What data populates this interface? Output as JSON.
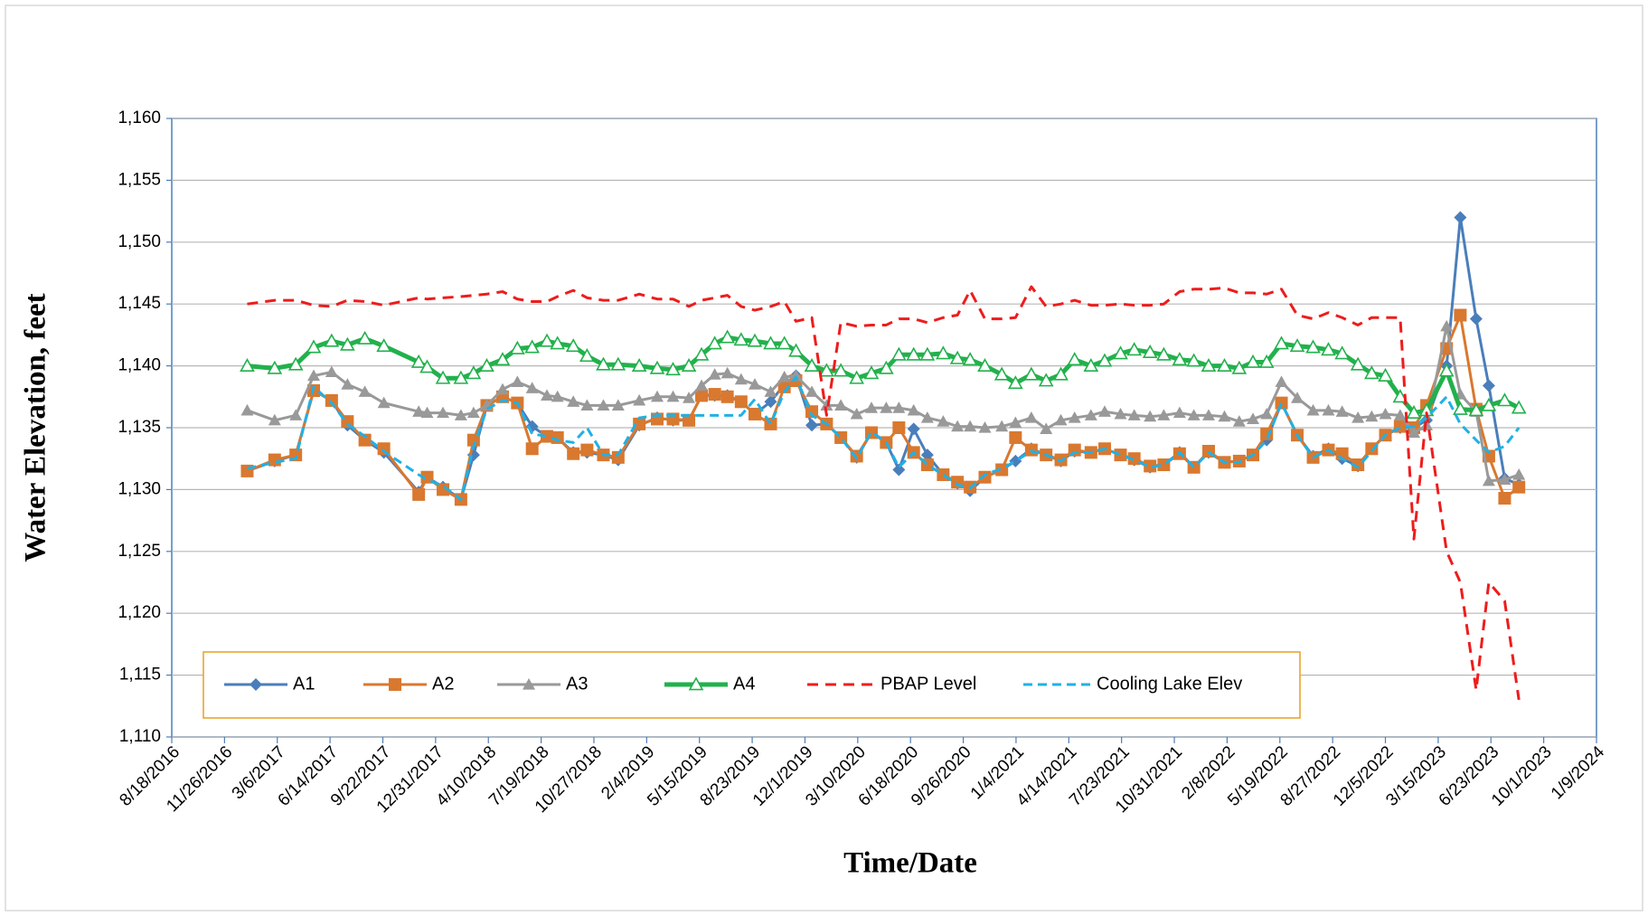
{
  "chart_data": {
    "type": "line",
    "x_title": "Time/Date",
    "y_title": "Water Elevation, feet",
    "xlim": [
      "8/18/2016",
      "1/9/2024"
    ],
    "xticks": [
      "8/18/2016",
      "11/26/2016",
      "3/6/2017",
      "6/14/2017",
      "9/22/2017",
      "12/31/2017",
      "4/10/2018",
      "7/19/2018",
      "10/27/2018",
      "2/4/2019",
      "5/15/2019",
      "8/23/2019",
      "12/1/2019",
      "3/10/2020",
      "6/18/2020",
      "9/26/2020",
      "1/4/2021",
      "4/14/2021",
      "7/23/2021",
      "10/31/2021",
      "2/8/2022",
      "5/19/2022",
      "8/27/2022",
      "12/5/2022",
      "3/15/2023",
      "6/23/2023",
      "10/1/2023",
      "1/9/2024"
    ],
    "ylim": [
      1110,
      1160
    ],
    "yticks": [
      {
        "value": 1110,
        "label": "1,110"
      },
      {
        "value": 1115,
        "label": "1,115"
      },
      {
        "value": 1120,
        "label": "1,120"
      },
      {
        "value": 1125,
        "label": "1,125"
      },
      {
        "value": 1130,
        "label": "1,130"
      },
      {
        "value": 1135,
        "label": "1,135"
      },
      {
        "value": 1140,
        "label": "1,140"
      },
      {
        "value": 1145,
        "label": "1,145"
      },
      {
        "value": 1150,
        "label": "1,150"
      },
      {
        "value": 1155,
        "label": "1,155"
      },
      {
        "value": 1160,
        "label": "1,160"
      }
    ],
    "grid": true,
    "legend": "bottom",
    "x": [
      "1/8/2017",
      "3/1/2017",
      "4/10/2017",
      "5/14/2017",
      "6/17/2017",
      "7/17/2017",
      "8/19/2017",
      "9/24/2017",
      "11/29/2017",
      "12/15/2017",
      "1/14/2018",
      "2/17/2018",
      "3/13/2018",
      "4/7/2018",
      "5/7/2018",
      "6/4/2018",
      "7/2/2018",
      "7/30/2018",
      "8/19/2018",
      "9/18/2018",
      "10/14/2018",
      "11/14/2018",
      "12/12/2018",
      "1/21/2019",
      "2/24/2019",
      "3/26/2019",
      "4/25/2019",
      "5/19/2019",
      "6/13/2019",
      "7/7/2019",
      "8/2/2019",
      "8/28/2019",
      "9/27/2019",
      "10/23/2019",
      "11/14/2019",
      "12/14/2019",
      "1/11/2020",
      "2/7/2020",
      "3/8/2020",
      "4/5/2020",
      "5/3/2020",
      "5/27/2020",
      "6/24/2020",
      "7/20/2020",
      "8/19/2020",
      "9/15/2020",
      "10/9/2020",
      "11/6/2020",
      "12/8/2020",
      "1/3/2021",
      "2/2/2021",
      "3/2/2021",
      "3/30/2021",
      "4/25/2021",
      "5/26/2021",
      "6/21/2021",
      "7/21/2021",
      "8/16/2021",
      "9/15/2021",
      "10/11/2021",
      "11/10/2021",
      "12/7/2021",
      "1/4/2022",
      "2/3/2022",
      "3/3/2022",
      "3/29/2022",
      "4/24/2022",
      "5/22/2022",
      "6/21/2022",
      "7/21/2022",
      "8/19/2022",
      "9/14/2022",
      "10/14/2022",
      "11/9/2022",
      "12/5/2022",
      "1/2/2023",
      "1/28/2023",
      "2/21/2023",
      "3/31/2023",
      "4/26/2023",
      "5/26/2023",
      "6/19/2023",
      "7/19/2023",
      "8/15/2023"
    ],
    "series": [
      {
        "name": "A1",
        "color": "#4a7ebb",
        "marker": "diamond",
        "dash": "none",
        "width": 3,
        "values": [
          1131.5,
          1132.3,
          1132.8,
          1138,
          1137.2,
          1135.2,
          1134,
          1133,
          1129.8,
          1131,
          1130.2,
          1129.2,
          1132.8,
          1136.8,
          1137.5,
          1137,
          1135.1,
          1134.3,
          1134.2,
          1133,
          1133,
          1132.8,
          1132.4,
          1135.2,
          1135.8,
          1135.6,
          1135.6,
          1137.6,
          1137.6,
          1137.6,
          1137.1,
          1136.1,
          1137.1,
          1138.5,
          1139.2,
          1135.2,
          1135.3,
          1134.2,
          1132.6,
          1134.6,
          1133.8,
          1131.6,
          1134.9,
          1132.8,
          1131.2,
          1130.5,
          1129.9,
          1131,
          1131.6,
          1132.3,
          1133.3,
          1132.8,
          1132.3,
          1133.1,
          1133,
          1133.3,
          1132.8,
          1132.4,
          1131.8,
          1132,
          1133,
          1131.8,
          1133,
          1132.2,
          1132.3,
          1132.8,
          1134,
          1137,
          1134.4,
          1132.7,
          1133.3,
          1132.5,
          1131.9,
          1133.3,
          1134.4,
          1135,
          1135,
          1135.6,
          1140,
          1152,
          1143.8,
          1138.4,
          1130.9,
          1130.4
        ]
      },
      {
        "name": "A2",
        "color": "#d9782f",
        "marker": "square",
        "dash": "none",
        "width": 3,
        "values": [
          1131.5,
          1132.4,
          1132.8,
          1138,
          1137.2,
          1135.5,
          1134,
          1133.3,
          1129.6,
          1131,
          1130,
          1129.2,
          1134,
          1136.8,
          1137.5,
          1137,
          1133.3,
          1134.3,
          1134.2,
          1132.9,
          1133.2,
          1132.8,
          1132.6,
          1135.3,
          1135.7,
          1135.7,
          1135.6,
          1137.6,
          1137.7,
          1137.5,
          1137.1,
          1136.1,
          1135.3,
          1138.3,
          1138.8,
          1136.3,
          1135.3,
          1134.2,
          1132.7,
          1134.6,
          1133.8,
          1135,
          1133,
          1132,
          1131.2,
          1130.6,
          1130.2,
          1131,
          1131.6,
          1134.2,
          1133.2,
          1132.8,
          1132.4,
          1133.2,
          1133,
          1133.3,
          1132.8,
          1132.5,
          1131.9,
          1132,
          1132.9,
          1131.8,
          1133.1,
          1132.2,
          1132.3,
          1132.8,
          1134.5,
          1137,
          1134.4,
          1132.6,
          1133.2,
          1132.9,
          1132,
          1133.3,
          1134.4,
          1135.1,
          1135,
          1136.8,
          1141.4,
          1144.1,
          1136.5,
          1132.7,
          1129.3,
          1130.2
        ]
      },
      {
        "name": "A3",
        "color": "#999999",
        "marker": "triangle",
        "dash": "none",
        "width": 3,
        "values": [
          1136.4,
          1135.6,
          1136,
          1139.2,
          1139.5,
          1138.5,
          1137.9,
          1137,
          1136.3,
          1136.2,
          1136.2,
          1136,
          1136.2,
          1136.8,
          1138.1,
          1138.7,
          1138.2,
          1137.6,
          1137.5,
          1137.1,
          1136.8,
          1136.8,
          1136.8,
          1137.2,
          1137.5,
          1137.5,
          1137.4,
          1138.4,
          1139.3,
          1139.4,
          1138.9,
          1138.5,
          1137.9,
          1139.1,
          1139.2,
          1137.9,
          1136.8,
          1136.8,
          1136.1,
          1136.6,
          1136.6,
          1136.6,
          1136.4,
          1135.8,
          1135.5,
          1135.1,
          1135.1,
          1135,
          1135.1,
          1135.4,
          1135.8,
          1134.9,
          1135.6,
          1135.8,
          1136,
          1136.3,
          1136.1,
          1136,
          1135.9,
          1136,
          1136.2,
          1136,
          1136,
          1135.9,
          1135.5,
          1135.7,
          1136.1,
          1138.7,
          1137.4,
          1136.4,
          1136.4,
          1136.3,
          1135.8,
          1135.9,
          1136.1,
          1136,
          1134.6,
          1135.2,
          1143.2,
          1137.7,
          1136.3,
          1130.7,
          1130.8,
          1131.2
        ]
      },
      {
        "name": "A4",
        "color": "#22b14c",
        "marker": "open-triangle",
        "dash": "none",
        "width": 5,
        "values": [
          1140,
          1139.8,
          1140.1,
          1141.5,
          1142,
          1141.7,
          1142.2,
          1141.6,
          1140.3,
          1139.9,
          1139,
          1139,
          1139.4,
          1140,
          1140.5,
          1141.4,
          1141.5,
          1142,
          1141.8,
          1141.6,
          1140.8,
          1140.1,
          1140.1,
          1140,
          1139.8,
          1139.7,
          1140,
          1140.9,
          1141.8,
          1142.3,
          1142.1,
          1142,
          1141.8,
          1141.8,
          1141.2,
          1140,
          1139.6,
          1139.6,
          1139,
          1139.4,
          1139.8,
          1140.9,
          1140.9,
          1140.9,
          1141,
          1140.6,
          1140.5,
          1140,
          1139.3,
          1138.6,
          1139.3,
          1138.8,
          1139.3,
          1140.5,
          1140,
          1140.4,
          1141,
          1141.3,
          1141.1,
          1140.9,
          1140.5,
          1140.4,
          1140,
          1140,
          1139.8,
          1140.3,
          1140.3,
          1141.8,
          1141.6,
          1141.5,
          1141.3,
          1141,
          1140.1,
          1139.4,
          1139.2,
          1137.5,
          1136.2,
          1136.4,
          1139.6,
          1136.5,
          1136.4,
          1136.8,
          1137.2,
          1136.6
        ]
      },
      {
        "name": "PBAP Level",
        "color": "#ee1c1c",
        "marker": "none",
        "dash": "12 8",
        "width": 3,
        "values": [
          1145,
          1145.3,
          1145.3,
          1144.9,
          1144.8,
          1145.3,
          1145.2,
          1144.9,
          1145.5,
          1145.4,
          1145.5,
          1145.6,
          1145.7,
          1145.8,
          1146,
          1145.4,
          1145.2,
          1145.2,
          1145.6,
          1146.1,
          1145.5,
          1145.3,
          1145.3,
          1145.8,
          1145.4,
          1145.4,
          1144.8,
          1145.3,
          1145.5,
          1145.7,
          1144.8,
          1144.5,
          1144.8,
          1145.2,
          1143.6,
          1143.9,
          1136,
          1143.5,
          1143.2,
          1143.3,
          1143.3,
          1143.8,
          1143.8,
          1143.5,
          1143.9,
          1144.1,
          1146.1,
          1143.8,
          1143.8,
          1143.9,
          1146.4,
          1144.8,
          1145,
          1145.3,
          1144.9,
          1144.9,
          1145,
          1144.9,
          1144.9,
          1145,
          1146,
          1146.2,
          1146.2,
          1146.3,
          1145.9,
          1145.9,
          1145.8,
          1146.2,
          1144.1,
          1143.8,
          1144.3,
          1143.9,
          1143.3,
          1143.9,
          1143.9,
          1143.9,
          1126,
          1136.2,
          1125,
          1122.5,
          1113.8,
          1122.5,
          1121,
          1113
        ]
      },
      {
        "name": "Cooling Lake Elev",
        "color": "#1fb1e6",
        "marker": "none",
        "dash": "10 6",
        "width": 3,
        "values": [
          1131.7,
          1132.2,
          1132.5,
          1138.3,
          1137,
          1135.3,
          1134.3,
          1133.1,
          1131.2,
          1130.8,
          1130.3,
          1129.2,
          1133.5,
          1136.5,
          1137.2,
          1137,
          1134.5,
          1134.3,
          1134,
          1133.8,
          1135,
          1132.8,
          1132.8,
          1135.8,
          1136,
          1136,
          1136,
          1136,
          1136,
          1136,
          1136,
          1137.3,
          1135.3,
          1137.9,
          1139.1,
          1136,
          1135.3,
          1134.2,
          1132.5,
          1134.7,
          1133.8,
          1131.8,
          1133,
          1132,
          1131.2,
          1130.4,
          1130.1,
          1131.2,
          1131.7,
          1132.3,
          1133.1,
          1132.8,
          1132.3,
          1133,
          1133,
          1133.3,
          1132.8,
          1132.4,
          1131.8,
          1132,
          1133,
          1131.8,
          1133,
          1132.2,
          1132.2,
          1132.8,
          1134,
          1137,
          1134.4,
          1132.6,
          1133.2,
          1132.5,
          1131.8,
          1133.1,
          1134.4,
          1135,
          1135.1,
          1135.8,
          1137.5,
          1135.3,
          1134,
          1133,
          1133.5,
          1135
        ]
      }
    ]
  }
}
